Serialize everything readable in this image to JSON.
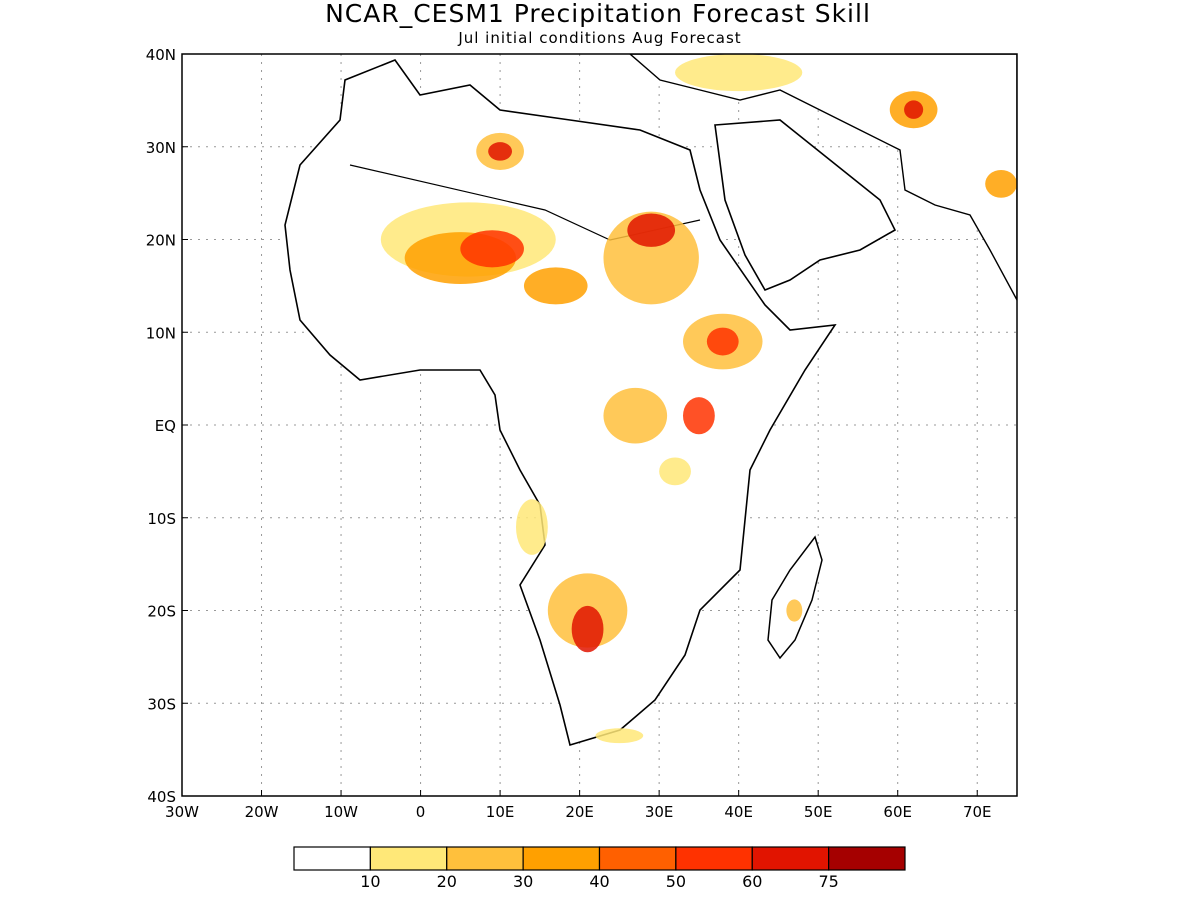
{
  "title": "NCAR_CESM1 Precipitation Forecast Skill",
  "subtitle": "Jul initial conditions  Aug Forecast",
  "map": {
    "lon_range": [
      -30,
      75
    ],
    "lat_range": [
      -40,
      40
    ],
    "gridlines": "dotted",
    "lon_ticks": [
      {
        "value": -30,
        "label": "30W"
      },
      {
        "value": -20,
        "label": "20W"
      },
      {
        "value": -10,
        "label": "10W"
      },
      {
        "value": 0,
        "label": "0"
      },
      {
        "value": 10,
        "label": "10E"
      },
      {
        "value": 20,
        "label": "20E"
      },
      {
        "value": 30,
        "label": "30E"
      },
      {
        "value": 40,
        "label": "40E"
      },
      {
        "value": 50,
        "label": "50E"
      },
      {
        "value": 60,
        "label": "60E"
      },
      {
        "value": 70,
        "label": "70E"
      }
    ],
    "lat_ticks": [
      {
        "value": 40,
        "label": "40N"
      },
      {
        "value": 30,
        "label": "30N"
      },
      {
        "value": 20,
        "label": "20N"
      },
      {
        "value": 10,
        "label": "10N"
      },
      {
        "value": 0,
        "label": "EQ"
      },
      {
        "value": -10,
        "label": "10S"
      },
      {
        "value": -20,
        "label": "20S"
      },
      {
        "value": -30,
        "label": "30S"
      },
      {
        "value": -40,
        "label": "40S"
      }
    ],
    "skill_regions": [
      {
        "lon": 6,
        "lat": 20,
        "rx": 11,
        "ry": 4,
        "level": 1
      },
      {
        "lon": 5,
        "lat": 18,
        "rx": 7,
        "ry": 2.8,
        "level": 3
      },
      {
        "lon": 9,
        "lat": 19,
        "rx": 4,
        "ry": 2,
        "level": 5
      },
      {
        "lon": 10,
        "lat": 29.5,
        "rx": 3,
        "ry": 2,
        "level": 2
      },
      {
        "lon": 10,
        "lat": 29.5,
        "rx": 1.5,
        "ry": 1,
        "level": 6
      },
      {
        "lon": 29,
        "lat": 18,
        "rx": 6,
        "ry": 5,
        "level": 2
      },
      {
        "lon": 29,
        "lat": 21,
        "rx": 3,
        "ry": 1.8,
        "level": 6
      },
      {
        "lon": 17,
        "lat": 15,
        "rx": 4,
        "ry": 2,
        "level": 3
      },
      {
        "lon": 38,
        "lat": 9,
        "rx": 5,
        "ry": 3,
        "level": 2
      },
      {
        "lon": 38,
        "lat": 9,
        "rx": 2,
        "ry": 1.5,
        "level": 5
      },
      {
        "lon": 27,
        "lat": 1,
        "rx": 4,
        "ry": 3,
        "level": 2
      },
      {
        "lon": 35,
        "lat": 1,
        "rx": 2,
        "ry": 2,
        "level": 5
      },
      {
        "lon": 21,
        "lat": -20,
        "rx": 5,
        "ry": 4,
        "level": 2
      },
      {
        "lon": 21,
        "lat": -22,
        "rx": 2,
        "ry": 2.5,
        "level": 6
      },
      {
        "lon": 14,
        "lat": -11,
        "rx": 2,
        "ry": 3,
        "level": 1
      },
      {
        "lon": 62,
        "lat": 34,
        "rx": 3,
        "ry": 2,
        "level": 3
      },
      {
        "lon": 62,
        "lat": 34,
        "rx": 1.2,
        "ry": 1,
        "level": 6
      },
      {
        "lon": 40,
        "lat": 38,
        "rx": 8,
        "ry": 2,
        "level": 1
      },
      {
        "lon": 32,
        "lat": -5,
        "rx": 2,
        "ry": 1.5,
        "level": 1
      },
      {
        "lon": 47,
        "lat": -20,
        "rx": 1,
        "ry": 1.2,
        "level": 2
      },
      {
        "lon": 25,
        "lat": -33.5,
        "rx": 3,
        "ry": 0.8,
        "level": 1
      },
      {
        "lon": 73,
        "lat": 26,
        "rx": 2,
        "ry": 1.5,
        "level": 3
      }
    ]
  },
  "colorbar": {
    "colors": [
      "#ffffff",
      "#ffe878",
      "#ffc03c",
      "#ffa000",
      "#ff6000",
      "#ff3200",
      "#e11400",
      "#a50000"
    ],
    "labels": [
      "10",
      "20",
      "30",
      "40",
      "50",
      "60",
      "75"
    ]
  }
}
